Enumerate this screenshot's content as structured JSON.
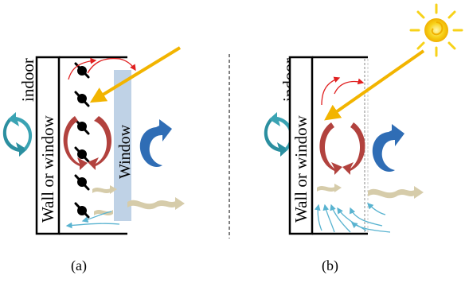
{
  "panel_a": {
    "indoor_label": "indoor",
    "wall_label": "Wall or window",
    "window_label": "Window",
    "caption": "(a)"
  },
  "panel_b": {
    "indoor_label": "indoor",
    "wall_label": "Wall or window",
    "caption": "(b)"
  },
  "colors": {
    "red_arrow": "#e02020",
    "sun_ray": "#f2b400",
    "sun": "#f7d21a",
    "blue_arrow": "#2f6db5",
    "teal_arrow": "#2b8fa0",
    "dark_red_arrow": "#b2423e",
    "air_flow_blue": "#59b3d0",
    "window_pane": "#b8cde3",
    "heat_wave": "#d6ccaa"
  },
  "icons": [
    "rotation-arrow-icon",
    "sun-icon",
    "fan-blind-icon",
    "heat-wave-icon",
    "air-flow-arrow-icon"
  ]
}
